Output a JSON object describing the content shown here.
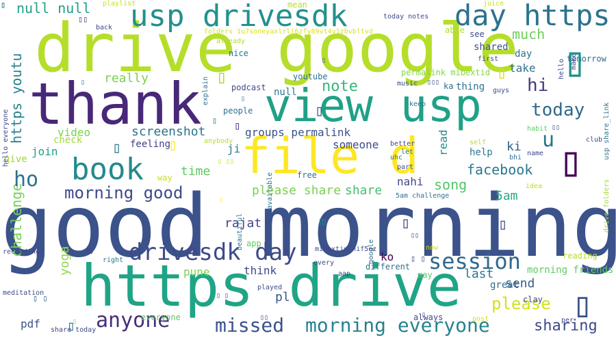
{
  "words": [
    {
      "text": "good morning",
      "color": "#3b528b",
      "rotate": false
    },
    {
      "text": "drive google",
      "color": "#b5de2b",
      "rotate": false
    },
    {
      "text": "thank",
      "color": "#482878",
      "rotate": false
    },
    {
      "text": "view usp",
      "color": "#1fa187",
      "rotate": false
    },
    {
      "text": "https drive",
      "color": "#20a486",
      "rotate": false
    },
    {
      "text": "file d",
      "color": "#fde725",
      "rotate": false
    },
    {
      "text": "usp drivesdk",
      "color": "#21918c",
      "rotate": false
    },
    {
      "text": "day https",
      "color": "#2c728e",
      "rotate": false
    },
    {
      "text": "book",
      "color": "#238a8d",
      "rotate": false
    },
    {
      "text": "drivesdk day",
      "color": "#3e4a89",
      "rotate": false
    },
    {
      "text": "session",
      "color": "#31688e",
      "rotate": false
    },
    {
      "text": "anyone",
      "color": "#472d7b",
      "rotate": false
    },
    {
      "text": "missed",
      "color": "#3b528b",
      "rotate": false
    },
    {
      "text": "morning everyone",
      "color": "#26828e",
      "rotate": false
    },
    {
      "text": "morning good",
      "color": "#3e4989",
      "rotate": false
    },
    {
      "text": "today",
      "color": "#31688e",
      "rotate": false
    },
    {
      "text": "note",
      "color": "#35b779",
      "rotate": false
    },
    {
      "text": "hi",
      "color": "#443983",
      "rotate": false
    },
    {
      "text": "u",
      "color": "#2c728e",
      "rotate": false
    },
    {
      "text": "please",
      "color": "#d2e21b",
      "rotate": false
    },
    {
      "text": "sharing",
      "color": "#3e4a89",
      "rotate": false
    },
    {
      "text": "https youtu",
      "color": "#26828e",
      "rotate": true
    },
    {
      "text": "challenge",
      "color": "#75d054",
      "rotate": true
    },
    {
      "text": "null null",
      "color": "#1fa187",
      "rotate": false
    },
    {
      "text": "much",
      "color": "#6ece58",
      "rotate": false
    },
    {
      "text": "facebook",
      "color": "#2a788e",
      "rotate": false
    },
    {
      "text": "please share",
      "color": "#7ad151",
      "rotate": false
    },
    {
      "text": "share",
      "color": "#44bf70",
      "rotate": false
    },
    {
      "text": "song",
      "color": "#52c569",
      "rotate": false
    },
    {
      "text": "5am",
      "color": "#22a884",
      "rotate": false
    },
    {
      "text": "screenshot",
      "color": "#2c728e",
      "rotate": false
    },
    {
      "text": "video",
      "color": "#7ad151",
      "rotate": false
    },
    {
      "text": "yoga",
      "color": "#8fd744",
      "rotate": true
    },
    {
      "text": "rajat",
      "color": "#414487",
      "rotate": false
    },
    {
      "text": "time",
      "color": "#5ec962",
      "rotate": false
    },
    {
      "text": "read",
      "color": "#238a8d",
      "rotate": true
    },
    {
      "text": "groups permalink",
      "color": "#3b528b",
      "rotate": false
    },
    {
      "text": "someone",
      "color": "#3e4a89",
      "rotate": false
    },
    {
      "text": "join",
      "color": "#1f9e89",
      "rotate": false
    },
    {
      "text": "really",
      "color": "#7ad151",
      "rotate": false
    },
    {
      "text": "check",
      "color": "#a0da39",
      "rotate": false
    },
    {
      "text": "take",
      "color": "#2d708e",
      "rotate": false
    },
    {
      "text": "ki",
      "color": "#33638d",
      "rotate": false
    },
    {
      "text": "last",
      "color": "#2a788e",
      "rotate": false
    },
    {
      "text": "send",
      "color": "#365c8d",
      "rotate": false
    },
    {
      "text": "pdf",
      "color": "#3b528b",
      "rotate": false
    },
    {
      "text": "pl",
      "color": "#39558c",
      "rotate": false
    },
    {
      "text": "think",
      "color": "#3e4989",
      "rotate": false
    },
    {
      "text": "pune",
      "color": "#7ad151",
      "rotate": false
    },
    {
      "text": "ko",
      "color": "#440154",
      "rotate": false
    },
    {
      "text": "great",
      "color": "#2e6e8e",
      "rotate": false
    },
    {
      "text": "morning friends",
      "color": "#5ec962",
      "rotate": false
    },
    {
      "text": "day",
      "color": "#2c728e",
      "rotate": false
    },
    {
      "text": "shared",
      "color": "#3b528b",
      "rotate": false
    },
    {
      "text": "thing",
      "color": "#2c728e",
      "rotate": false
    },
    {
      "text": "help",
      "color": "#2a788e",
      "rotate": false
    },
    {
      "text": "ji",
      "color": "#2a788e",
      "rotate": false
    },
    {
      "text": "m",
      "color": "#2a788e",
      "rotate": false
    },
    {
      "text": "nahi",
      "color": "#3e4989",
      "rotate": false
    },
    {
      "text": "feeling",
      "color": "#433e85",
      "rotate": false
    },
    {
      "text": "give",
      "color": "#9bd93c",
      "rotate": false
    },
    {
      "text": "null",
      "color": "#2a788e",
      "rotate": false
    },
    {
      "text": "podcast",
      "color": "#3e4989",
      "rotate": false
    },
    {
      "text": "youtube",
      "color": "#2c728e",
      "rotate": false
    },
    {
      "text": "people",
      "color": "#2c728e",
      "rotate": false
    },
    {
      "text": "nice",
      "color": "#2c728e",
      "rotate": false
    },
    {
      "text": "mean",
      "color": "#b5de2b",
      "rotate": false
    },
    {
      "text": "playlist",
      "color": "#c8e020",
      "rotate": false
    },
    {
      "text": "juice",
      "color": "#c2df23",
      "rotate": false
    },
    {
      "text": "today notes",
      "color": "#3e4989",
      "rotate": false
    },
    {
      "text": "back",
      "color": "#414487",
      "rotate": false
    },
    {
      "text": "able",
      "color": "#addc30",
      "rotate": false
    },
    {
      "text": "see",
      "color": "#3e4989",
      "rotate": false
    },
    {
      "text": "folders 1u7soneyaxlrlj6zfy89vt4y1zbvbltvd",
      "color": "#d8e219",
      "rotate": false
    },
    {
      "text": "already",
      "color": "#b5de2b",
      "rotate": false
    },
    {
      "text": "permalink mibextid",
      "color": "#86d549",
      "rotate": false
    },
    {
      "text": "tomorrow",
      "color": "#31688e",
      "rotate": false
    },
    {
      "text": "first",
      "color": "#3e4989",
      "rotate": false
    },
    {
      "text": "hello",
      "color": "#3e4989",
      "rotate": true
    },
    {
      "text": "make",
      "color": "#3e4989",
      "rotate": true
    },
    {
      "text": "usp share_link",
      "color": "#2c728e",
      "rotate": true
    },
    {
      "text": "music",
      "color": "#3e4989",
      "rotate": false
    },
    {
      "text": "ka",
      "color": "#31688e",
      "rotate": false
    },
    {
      "text": "guys",
      "color": "#3e4989",
      "rotate": false
    },
    {
      "text": "keep",
      "color": "#2c728e",
      "rotate": false
    },
    {
      "text": "habit",
      "color": "#5ec962",
      "rotate": false
    },
    {
      "text": "self",
      "color": "#addc30",
      "rotate": false
    },
    {
      "text": "club",
      "color": "#3e4989",
      "rotate": false
    },
    {
      "text": "bhi",
      "color": "#2c728e",
      "rotate": false
    },
    {
      "text": "name",
      "color": "#3e4989",
      "rotate": false
    },
    {
      "text": "drive folders",
      "color": "#a0da39",
      "rotate": true
    },
    {
      "text": "idea",
      "color": "#b5de2b",
      "rotate": false
    },
    {
      "text": "better",
      "color": "#3e4989",
      "rotate": false
    },
    {
      "text": "let",
      "color": "#2c728e",
      "rotate": false
    },
    {
      "text": "uhc",
      "color": "#2c728e",
      "rotate": false
    },
    {
      "text": "part",
      "color": "#3e4989",
      "rotate": false
    },
    {
      "text": "available",
      "color": "#2c728e",
      "rotate": true
    },
    {
      "text": "free",
      "color": "#2c728e",
      "rotate": false
    },
    {
      "text": "anybody",
      "color": "#b5de2b",
      "rotate": false
    },
    {
      "text": "way",
      "color": "#c8e020",
      "rotate": false
    },
    {
      "text": "explain",
      "color": "#2c728e",
      "rotate": true
    },
    {
      "text": "hello everyone",
      "color": "#3e4989",
      "rotate": true
    },
    {
      "text": "5am challenge",
      "color": "#2c728e",
      "rotate": false
    },
    {
      "text": "beautiful",
      "color": "#2c728e",
      "rotate": true
    },
    {
      "text": "google",
      "color": "#2c728e",
      "rotate": true
    },
    {
      "text": "app",
      "color": "#5ec962",
      "rotate": false
    },
    {
      "text": "now",
      "color": "#c8e020",
      "rotate": false
    },
    {
      "text": "mibextid nif5oz",
      "color": "#3e4989",
      "rotate": false
    },
    {
      "text": "recording",
      "color": "#3e4989",
      "rotate": false
    },
    {
      "text": "fb",
      "color": "#3e4989",
      "rotate": false
    },
    {
      "text": "right",
      "color": "#2c728e",
      "rotate": false
    },
    {
      "text": "every",
      "color": "#3e4989",
      "rotate": false
    },
    {
      "text": "different",
      "color": "#2c728e",
      "rotate": false
    },
    {
      "text": "may",
      "color": "#5ec962",
      "rotate": false
    },
    {
      "text": "played",
      "color": "#3e4989",
      "rotate": false
    },
    {
      "text": "aap",
      "color": "#3e4989",
      "rotate": false
    },
    {
      "text": "reading",
      "color": "#b5de2b",
      "rotate": false
    },
    {
      "text": "clay",
      "color": "#3e4989",
      "rotate": false
    },
    {
      "text": "meditation",
      "color": "#3e4989",
      "rotate": false
    },
    {
      "text": "always",
      "color": "#3e4989",
      "rotate": false
    },
    {
      "text": "everyone",
      "color": "#5ec962",
      "rotate": false
    },
    {
      "text": "share today",
      "color": "#3e4989",
      "rotate": false
    },
    {
      "text": "post",
      "color": "#d8e219",
      "rotate": false
    },
    {
      "text": "per",
      "color": "#3e4989",
      "rotate": false
    },
    {
      "text": "ho",
      "color": "#2c728e",
      "rotate": false
    },
    {
      "text": "▯",
      "color": "#addc30",
      "rotate": false
    },
    {
      "text": "▯",
      "color": "#3b528b",
      "rotate": false
    },
    {
      "text": "▯",
      "color": "#440154",
      "rotate": false
    },
    {
      "text": "▯",
      "color": "#21918c",
      "rotate": false
    },
    {
      "text": "▯",
      "color": "#fde725",
      "rotate": false
    },
    {
      "text": "▯",
      "color": "#433e85",
      "rotate": false
    },
    {
      "text": "▯",
      "color": "#3e4989",
      "rotate": false
    },
    {
      "text": "▯",
      "color": "#2a788e",
      "rotate": false
    },
    {
      "text": "▯",
      "color": "#d2e21b",
      "rotate": false
    },
    {
      "text": "▯",
      "color": "#3b528b",
      "rotate": false
    },
    {
      "text": "▯",
      "color": "#2c728e",
      "rotate": false
    },
    {
      "text": "▯",
      "color": "#482878",
      "rotate": false
    },
    {
      "text": "▯",
      "color": "#fde725",
      "rotate": false
    },
    {
      "text": "▯",
      "color": "#7ad151",
      "rotate": false
    },
    {
      "text": "▯",
      "color": "#3b528b",
      "rotate": false
    },
    {
      "text": "▯",
      "color": "#3e4989",
      "rotate": false
    },
    {
      "text": "▯",
      "color": "#2c728e",
      "rotate": false
    },
    {
      "text": "▯ ▯",
      "color": "#31688e",
      "rotate": false
    },
    {
      "text": "▯ ▯",
      "color": "#3e4989",
      "rotate": false
    },
    {
      "text": "▯ ▯",
      "color": "#3e4989",
      "rotate": false
    },
    {
      "text": "▯ ▯▯",
      "color": "#c8e020",
      "rotate": false
    },
    {
      "text": "▯▯",
      "color": "#3e4989",
      "rotate": false
    },
    {
      "text": "▯▯",
      "color": "#3e4989",
      "rotate": false
    },
    {
      "text": "▯▯",
      "color": "#3e4989",
      "rotate": false
    },
    {
      "text": "▯▯",
      "color": "#3e4989",
      "rotate": false
    },
    {
      "text": "▯▯▯",
      "color": "#3e4989",
      "rotate": false
    },
    {
      "text": "▯",
      "color": "#2c728e",
      "rotate": false
    },
    {
      "text": "▯",
      "color": "#2c728e",
      "rotate": false
    },
    {
      "text": "▯",
      "color": "#5ec962",
      "rotate": false
    },
    {
      "text": "▯",
      "color": "#2c728e",
      "rotate": false
    },
    {
      "text": "▯",
      "color": "#2c728e",
      "rotate": false
    }
  ]
}
